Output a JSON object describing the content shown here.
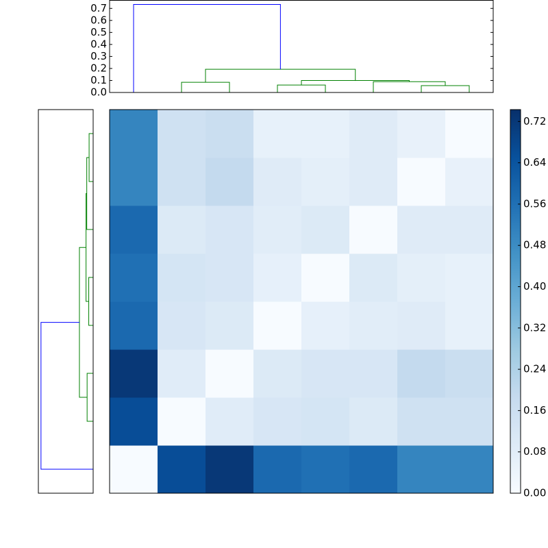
{
  "chart_data": {
    "type": "clustermap",
    "colormap": "Blues",
    "matrix": [
      [
        0,
        0.66,
        0.72,
        0.58,
        0.56,
        0.58,
        0.5,
        0.5
      ],
      [
        0.66,
        0,
        0.085,
        0.12,
        0.13,
        0.1,
        0.15,
        0.15
      ],
      [
        0.72,
        0.085,
        0,
        0.1,
        0.12,
        0.12,
        0.19,
        0.17
      ],
      [
        0.58,
        0.12,
        0.1,
        0,
        0.062,
        0.08,
        0.09,
        0.06
      ],
      [
        0.56,
        0.13,
        0.12,
        0.062,
        0,
        0.1,
        0.07,
        0.06
      ],
      [
        0.58,
        0.1,
        0.12,
        0.08,
        0.1,
        0,
        0.09,
        0.09
      ],
      [
        0.5,
        0.15,
        0.19,
        0.09,
        0.07,
        0.09,
        0,
        0.057
      ],
      [
        0.5,
        0.15,
        0.17,
        0.06,
        0.06,
        0.09,
        0.057,
        0
      ]
    ],
    "clim": [
      0,
      0.743
    ],
    "cbar_ticks": [
      {
        "value": 0,
        "label": "0.00"
      },
      {
        "value": 0.08,
        "label": "0.08"
      },
      {
        "value": 0.16,
        "label": "0.16"
      },
      {
        "value": 0.24,
        "label": "0.24"
      },
      {
        "value": 0.32,
        "label": "0.32"
      },
      {
        "value": 0.4,
        "label": "0.40"
      },
      {
        "value": 0.48,
        "label": "0.48"
      },
      {
        "value": 0.56,
        "label": "0.56"
      },
      {
        "value": 0.64,
        "label": "0.64"
      },
      {
        "value": 0.72,
        "label": "0.72"
      }
    ],
    "dendrogram": {
      "xlim": [
        0,
        80
      ],
      "ylim": [
        0,
        0.77
      ],
      "yticks": [
        {
          "value": 0,
          "label": "0.0"
        },
        0.1,
        0.2,
        0.3,
        0.4,
        0.5,
        0.6,
        0.7
      ],
      "links": [
        {
          "icoord": [
            15,
            15,
            25,
            25
          ],
          "dcoord": [
            0,
            0.085,
            0.085,
            0
          ],
          "color": "#008000"
        },
        {
          "icoord": [
            35,
            35,
            45,
            45
          ],
          "dcoord": [
            0,
            0.062,
            0.062,
            0
          ],
          "color": "#008000"
        },
        {
          "icoord": [
            65,
            65,
            75,
            75
          ],
          "dcoord": [
            0,
            0.057,
            0.057,
            0
          ],
          "color": "#008000"
        },
        {
          "icoord": [
            55,
            55,
            70,
            70
          ],
          "dcoord": [
            0,
            0.09,
            0.09,
            0.057
          ],
          "color": "#008000"
        },
        {
          "icoord": [
            40,
            40,
            62.5,
            62.5
          ],
          "dcoord": [
            0.062,
            0.1,
            0.1,
            0.09
          ],
          "color": "#008000"
        },
        {
          "icoord": [
            20,
            20,
            51.25,
            51.25
          ],
          "dcoord": [
            0.085,
            0.193,
            0.193,
            0.1
          ],
          "color": "#008000"
        },
        {
          "icoord": [
            5,
            5,
            35.625,
            35.625
          ],
          "dcoord": [
            0,
            0.733,
            0.733,
            0.193
          ],
          "color": "#0000ff"
        }
      ]
    }
  }
}
